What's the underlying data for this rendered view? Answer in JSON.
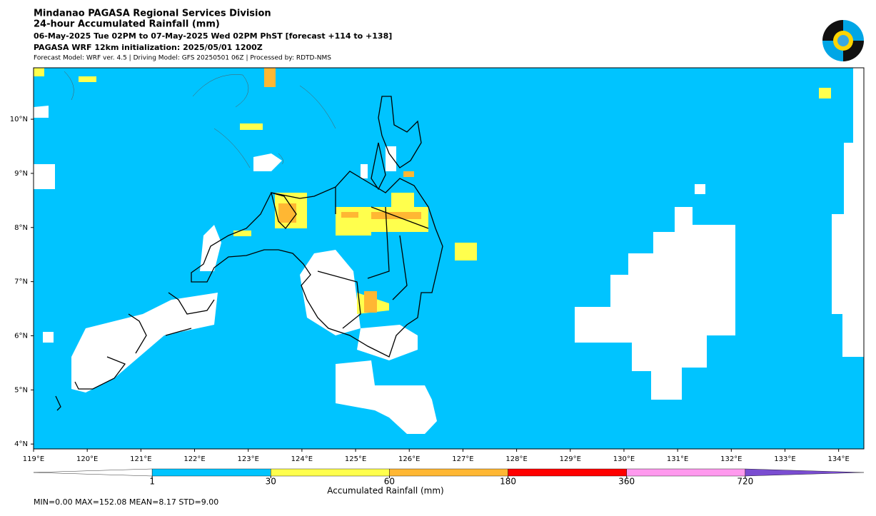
{
  "header": {
    "lines": [
      "Mindanao PAGASA Regional Services Division",
      "24-hour Accumulated Rainfall (mm)",
      "06-May-2025 Tue 02PM to 07-May-2025 Wed 02PM PhST [forecast +114 to +138]",
      "PAGASA WRF 12km initialization: 2025/05/01 1200Z",
      "Forecast Model: WRF ver. 4.5 | Driving Model: GFS 20250501 06Z | Processed by: RDTD-NMS"
    ]
  },
  "map": {
    "xlim": [
      119,
      134.47
    ],
    "ylim": [
      3.91,
      10.95
    ],
    "xticks": [
      {
        "value": 119,
        "label": "119°E"
      },
      {
        "value": 120,
        "label": "120°E"
      },
      {
        "value": 121,
        "label": "121°E"
      },
      {
        "value": 122,
        "label": "122°E"
      },
      {
        "value": 123,
        "label": "123°E"
      },
      {
        "value": 124,
        "label": "124°E"
      },
      {
        "value": 125,
        "label": "125°E"
      },
      {
        "value": 126,
        "label": "126°E"
      },
      {
        "value": 127,
        "label": "127°E"
      },
      {
        "value": 128,
        "label": "128°E"
      },
      {
        "value": 129,
        "label": "129°E"
      },
      {
        "value": 130,
        "label": "130°E"
      },
      {
        "value": 131,
        "label": "131°E"
      },
      {
        "value": 132,
        "label": "132°E"
      },
      {
        "value": 133,
        "label": "133°E"
      },
      {
        "value": 134,
        "label": "134°E"
      }
    ],
    "yticks": [
      {
        "value": 4,
        "label": "4°N"
      },
      {
        "value": 5,
        "label": "5°N"
      },
      {
        "value": 6,
        "label": "6°N"
      },
      {
        "value": 7,
        "label": "7°N"
      },
      {
        "value": 8,
        "label": "8°N"
      },
      {
        "value": 9,
        "label": "9°N"
      },
      {
        "value": 10,
        "label": "10°N"
      }
    ]
  },
  "colorbar": {
    "label": "Accumulated Rainfall (mm)",
    "ticks": [
      1,
      30,
      60,
      180,
      360,
      720
    ],
    "colors": [
      "#ffffff",
      "#00c4ff",
      "#ffff4d",
      "#ffb733",
      "#ff0000",
      "#ff99ee",
      "#7a4dd1"
    ]
  },
  "stats": "MIN=0.00   MAX=152.08   MEAN=8.17   STD=9.00"
}
